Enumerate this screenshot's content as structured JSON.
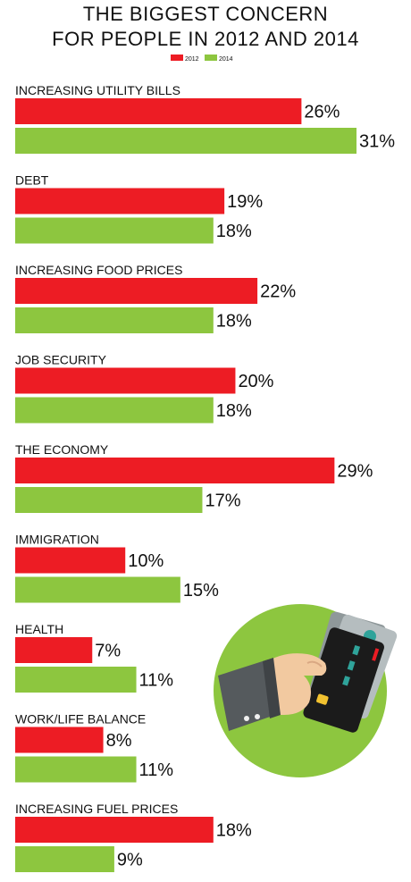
{
  "chart_data": {
    "type": "bar",
    "orientation": "horizontal",
    "title": "THE BIGGEST CONCERN",
    "subtitle": "FOR PEOPLE IN 2012 AND 2014",
    "legend_position": "top-center",
    "grid": false,
    "xlim": [
      0,
      31
    ],
    "value_suffix": "%",
    "categories": [
      "INCREASING UTILITY BILLS",
      "DEBT",
      "INCREASING FOOD PRICES",
      "JOB SECURITY",
      "THE ECONOMY",
      "IMMIGRATION",
      "HEALTH",
      "WORK/LIFE BALANCE",
      "INCREASING FUEL PRICES"
    ],
    "series": [
      {
        "name": "2012",
        "color": "#ed1c24",
        "values": [
          26,
          19,
          22,
          20,
          29,
          10,
          7,
          8,
          18
        ]
      },
      {
        "name": "2014",
        "color": "#8dc63f",
        "values": [
          31,
          18,
          18,
          18,
          17,
          15,
          11,
          11,
          9
        ]
      }
    ]
  },
  "illustration": {
    "name": "hand-holding-credit-cards-icon",
    "circle_color": "#8dc63f"
  }
}
